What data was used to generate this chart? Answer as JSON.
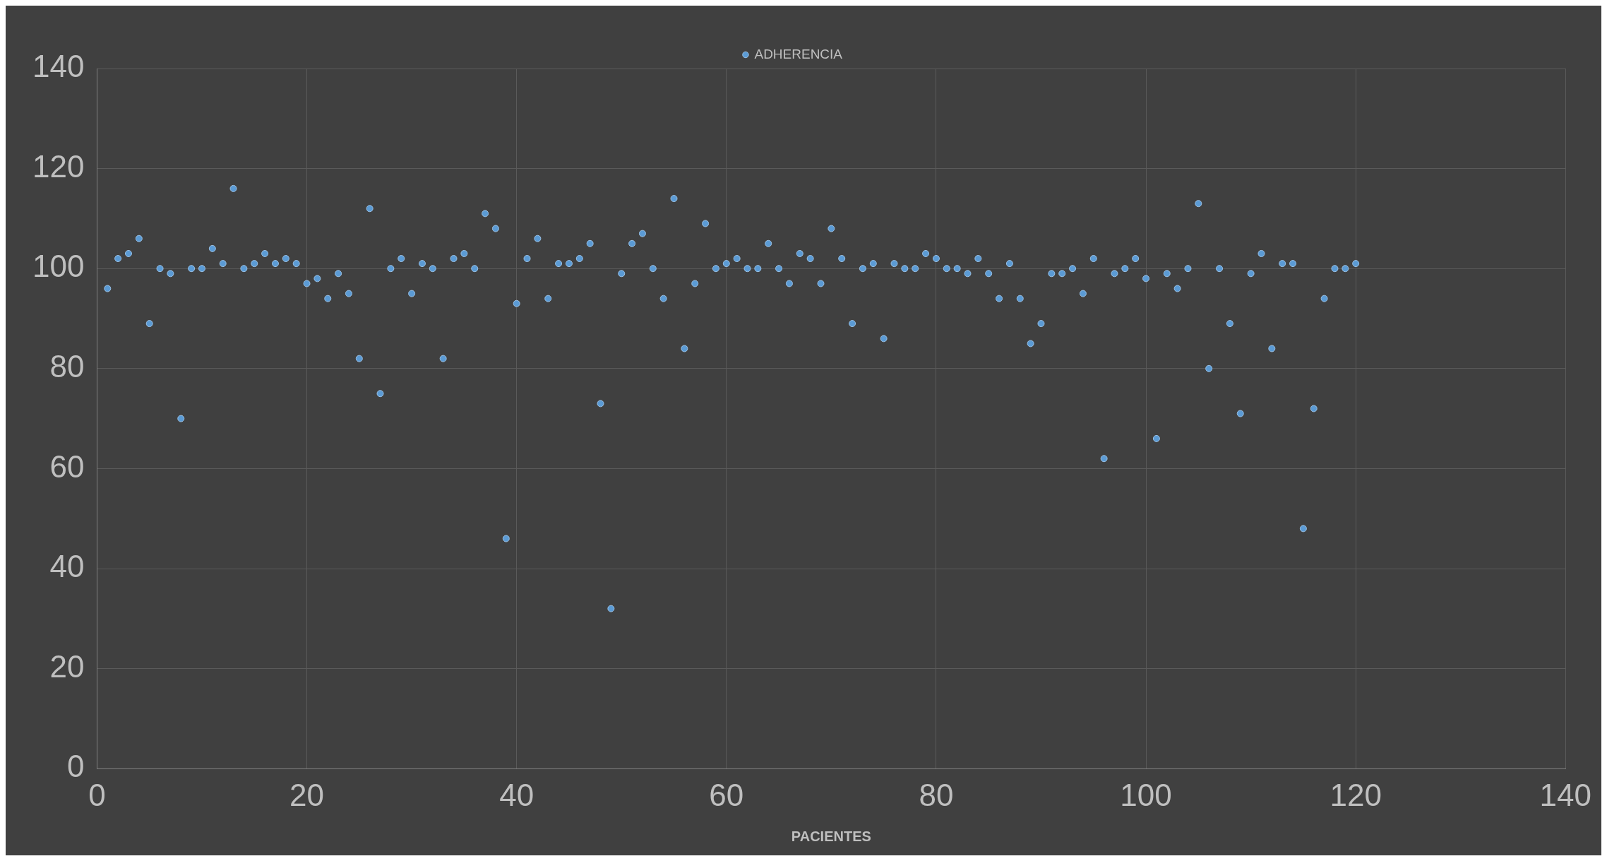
{
  "chart_data": {
    "type": "scatter",
    "xlabel": "PACIENTES",
    "legend": "top",
    "grid": true,
    "marker": "circle",
    "xlim": [
      0,
      140
    ],
    "xticks": [
      0,
      20,
      40,
      60,
      80,
      100,
      120,
      140
    ],
    "ylim": [
      0,
      140
    ],
    "yticks": [
      0,
      20,
      40,
      60,
      80,
      100,
      120,
      140
    ],
    "x": [
      1,
      2,
      3,
      4,
      5,
      6,
      7,
      8,
      9,
      10,
      11,
      12,
      13,
      14,
      15,
      16,
      17,
      18,
      19,
      20,
      21,
      22,
      23,
      24,
      25,
      26,
      27,
      28,
      29,
      30,
      31,
      32,
      33,
      34,
      35,
      36,
      37,
      38,
      39,
      40,
      41,
      42,
      43,
      44,
      45,
      46,
      47,
      48,
      49,
      50,
      51,
      52,
      53,
      54,
      55,
      56,
      57,
      58,
      59,
      60,
      61,
      62,
      63,
      64,
      65,
      66,
      67,
      68,
      69,
      70,
      71,
      72,
      73,
      74,
      75,
      76,
      77,
      78,
      79,
      80,
      81,
      82,
      83,
      84,
      85,
      86,
      87,
      88,
      89,
      90,
      91,
      92,
      93,
      94,
      95,
      96,
      97,
      98,
      99,
      100,
      101,
      102,
      103,
      104,
      105,
      106,
      107,
      108,
      109,
      110,
      111,
      112,
      113,
      114,
      115,
      116,
      117,
      118,
      119,
      120
    ],
    "series": [
      {
        "name": "ADHERENCIA",
        "color": "#5b9bd5",
        "values": [
          96,
          102,
          103,
          106,
          89,
          100,
          99,
          70,
          100,
          100,
          104,
          101,
          116,
          100,
          101,
          103,
          101,
          102,
          101,
          97,
          98,
          94,
          99,
          95,
          82,
          112,
          75,
          100,
          102,
          95,
          101,
          100,
          82,
          102,
          103,
          100,
          111,
          108,
          46,
          93,
          102,
          106,
          94,
          101,
          101,
          102,
          105,
          73,
          32,
          99,
          105,
          107,
          100,
          94,
          114,
          84,
          97,
          109,
          100,
          101,
          102,
          100,
          100,
          105,
          100,
          97,
          103,
          102,
          97,
          108,
          102,
          89,
          100,
          101,
          86,
          101,
          100,
          100,
          103,
          102,
          100,
          100,
          99,
          102,
          99,
          94,
          101,
          94,
          85,
          89,
          99,
          99,
          100,
          95,
          102,
          62,
          99,
          100,
          102,
          98,
          66,
          99,
          96,
          100,
          113,
          80,
          100,
          89,
          71,
          99,
          103,
          84,
          101,
          101,
          48,
          72,
          94,
          100,
          100,
          101
        ]
      }
    ]
  }
}
